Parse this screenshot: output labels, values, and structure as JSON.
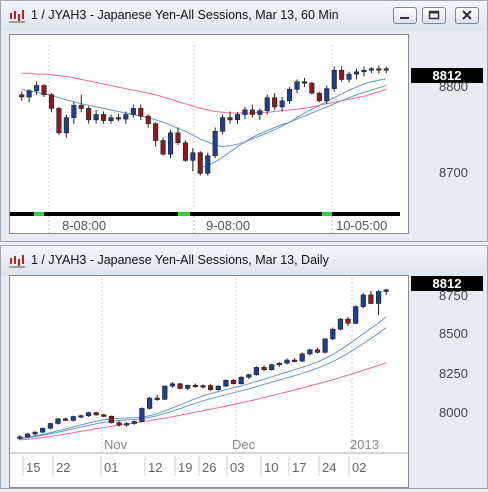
{
  "windows": [
    {
      "title": "1 / JYAH3 - Japanese Yen-All Sessions, Mar 13, 60 Min",
      "last_price": "8812",
      "y_labels": [
        "8800",
        "8700"
      ],
      "session_labels": [
        "8-08:00",
        "9-08:00",
        "10-05:00"
      ]
    },
    {
      "title": "1 / JYAH3 - Japanese Yen-All Sessions, Mar 13, Daily",
      "last_price": "8812",
      "y_labels": [
        "8750",
        "8500",
        "8250",
        "8000"
      ],
      "month_labels": [
        "Nov",
        "Dec",
        "2013"
      ],
      "day_labels": [
        "15",
        "22",
        "01",
        "12",
        "19",
        "26",
        "03",
        "10",
        "17",
        "24",
        "02"
      ]
    }
  ],
  "icons": {
    "app": "chart-app-icon",
    "minimize": "minimize-icon",
    "maximize": "maximize-icon",
    "close": "close-icon"
  },
  "colors": {
    "up_candle": "#1f3f8f",
    "down_candle": "#8b1a1a",
    "ma_fast": "#6699cc",
    "ma_slow": "#ff6699",
    "session_bar": "#000000",
    "session_marker": "#33cc33"
  },
  "chart_data": [
    {
      "type": "candlestick",
      "title": "1 / JYAH3 - Japanese Yen-All Sessions, Mar 13, 60 Min",
      "ylim": [
        8640,
        8830
      ],
      "y_ticks": [
        8700,
        8800
      ],
      "last": 8812,
      "candles": [
        [
          8778,
          8782,
          8770,
          8775
        ],
        [
          8775,
          8785,
          8768,
          8783
        ],
        [
          8783,
          8795,
          8778,
          8790
        ],
        [
          8790,
          8792,
          8775,
          8778
        ],
        [
          8778,
          8780,
          8755,
          8760
        ],
        [
          8760,
          8762,
          8725,
          8728
        ],
        [
          8728,
          8752,
          8722,
          8748
        ],
        [
          8748,
          8768,
          8740,
          8764
        ],
        [
          8764,
          8778,
          8755,
          8760
        ],
        [
          8760,
          8763,
          8740,
          8745
        ],
        [
          8745,
          8758,
          8740,
          8752
        ],
        [
          8752,
          8756,
          8740,
          8744
        ],
        [
          8744,
          8752,
          8740,
          8748
        ],
        [
          8748,
          8753,
          8743,
          8746
        ],
        [
          8746,
          8756,
          8740,
          8752
        ],
        [
          8752,
          8765,
          8748,
          8760
        ],
        [
          8760,
          8765,
          8745,
          8750
        ],
        [
          8750,
          8752,
          8735,
          8740
        ],
        [
          8740,
          8742,
          8710,
          8718
        ],
        [
          8718,
          8722,
          8698,
          8700
        ],
        [
          8700,
          8732,
          8695,
          8728
        ],
        [
          8728,
          8735,
          8712,
          8715
        ],
        [
          8715,
          8718,
          8690,
          8692
        ],
        [
          8692,
          8708,
          8678,
          8702
        ],
        [
          8702,
          8704,
          8672,
          8675
        ],
        [
          8675,
          8702,
          8672,
          8698
        ],
        [
          8698,
          8735,
          8695,
          8730
        ],
        [
          8730,
          8752,
          8726,
          8748
        ],
        [
          8748,
          8756,
          8740,
          8745
        ],
        [
          8745,
          8755,
          8740,
          8752
        ],
        [
          8752,
          8762,
          8746,
          8758
        ],
        [
          8758,
          8765,
          8748,
          8752
        ],
        [
          8752,
          8760,
          8745,
          8757
        ],
        [
          8757,
          8778,
          8752,
          8774
        ],
        [
          8774,
          8780,
          8758,
          8762
        ],
        [
          8762,
          8775,
          8756,
          8770
        ],
        [
          8770,
          8788,
          8766,
          8785
        ],
        [
          8785,
          8798,
          8780,
          8795
        ],
        [
          8795,
          8800,
          8788,
          8793
        ],
        [
          8793,
          8795,
          8778,
          8780
        ],
        [
          8780,
          8782,
          8768,
          8770
        ],
        [
          8770,
          8790,
          8766,
          8786
        ],
        [
          8786,
          8815,
          8782,
          8810
        ],
        [
          8810,
          8815,
          8795,
          8798
        ],
        [
          8798,
          8808,
          8794,
          8805
        ],
        [
          8805,
          8812,
          8798,
          8808
        ],
        [
          8808,
          8815,
          8802,
          8810
        ],
        [
          8810,
          8814,
          8806,
          8812
        ],
        [
          8812,
          8816,
          8806,
          8810
        ],
        [
          8810,
          8815,
          8806,
          8812
        ]
      ],
      "ma_fast": [
        8785,
        8783,
        8781,
        8779,
        8777,
        8774,
        8771,
        8769,
        8766,
        8764,
        8762,
        8760,
        8758,
        8756,
        8754,
        8752,
        8750,
        8748,
        8745,
        8742,
        8738,
        8734,
        8730,
        8725,
        8720,
        8716,
        8712,
        8710,
        8711,
        8713,
        8716,
        8720,
        8724,
        8728,
        8732,
        8737,
        8742,
        8748,
        8754,
        8759,
        8764,
        8769,
        8774,
        8779,
        8784,
        8788,
        8792,
        8795,
        8797,
        8799
      ],
      "ma_slow": [
        null,
        null,
        null,
        null,
        null,
        null,
        null,
        null,
        null,
        null,
        null,
        null,
        null,
        null,
        null,
        null,
        null,
        null,
        null,
        null,
        null,
        null,
        null,
        null,
        8682,
        8685,
        8690,
        8696,
        8703,
        8710,
        8716,
        8722,
        8727,
        8731,
        8735,
        8739,
        8742,
        8746,
        8750,
        8754,
        8758,
        8762,
        8766,
        8770,
        8774,
        8778,
        8781,
        8784,
        8787,
        8790
      ],
      "ma_slowest": [
        8806,
        8806,
        8805,
        8805,
        8804,
        8803,
        8802,
        8800,
        8798,
        8796,
        8794,
        8792,
        8790,
        8788,
        8786,
        8784,
        8782,
        8780,
        8778,
        8775,
        8772,
        8769,
        8766,
        8763,
        8760,
        8758,
        8756,
        8755,
        8754,
        8754,
        8754,
        8754,
        8755,
        8755,
        8756,
        8757,
        8758,
        8759,
        8760,
        8762,
        8764,
        8766,
        8768,
        8770,
        8772,
        8774,
        8776,
        8779,
        8782,
        8785
      ],
      "sessions": [
        "8-08:00",
        "9-08:00",
        "10-05:00"
      ]
    },
    {
      "type": "candlestick",
      "title": "1 / JYAH3 - Japanese Yen-All Sessions, Mar 13, Daily",
      "ylim": [
        7830,
        8850
      ],
      "y_ticks": [
        8000,
        8250,
        8500,
        8750
      ],
      "last": 8812,
      "x_months": [
        "Nov",
        "Dec",
        "2013"
      ],
      "x_days": [
        "15",
        "22",
        "01",
        "12",
        "19",
        "26",
        "03",
        "10",
        "17",
        "24",
        "02"
      ],
      "candles": [
        [
          7860,
          7880,
          7850,
          7870
        ],
        [
          7870,
          7895,
          7862,
          7888
        ],
        [
          7888,
          7905,
          7878,
          7900
        ],
        [
          7900,
          7930,
          7892,
          7925
        ],
        [
          7925,
          7960,
          7918,
          7955
        ],
        [
          7955,
          7990,
          7948,
          7985
        ],
        [
          7985,
          7992,
          7970,
          7975
        ],
        [
          7975,
          8005,
          7968,
          8000
        ],
        [
          8000,
          8012,
          7990,
          8005
        ],
        [
          8005,
          8030,
          7998,
          8025
        ],
        [
          8025,
          8030,
          8005,
          8010
        ],
        [
          8010,
          8018,
          7995,
          8002
        ],
        [
          8002,
          8005,
          7955,
          7960
        ],
        [
          7960,
          7972,
          7935,
          7945
        ],
        [
          7945,
          7965,
          7935,
          7955
        ],
        [
          7955,
          7975,
          7948,
          7968
        ],
        [
          7968,
          8058,
          7962,
          8052
        ],
        [
          8052,
          8125,
          8045,
          8118
        ],
        [
          8118,
          8138,
          8100,
          8110
        ],
        [
          8110,
          8198,
          8105,
          8195
        ],
        [
          8195,
          8220,
          8185,
          8210
        ],
        [
          8210,
          8215,
          8175,
          8180
        ],
        [
          8180,
          8205,
          8170,
          8200
        ],
        [
          8200,
          8212,
          8185,
          8192
        ],
        [
          8192,
          8205,
          8180,
          8198
        ],
        [
          8198,
          8210,
          8165,
          8172
        ],
        [
          8172,
          8200,
          8165,
          8195
        ],
        [
          8195,
          8238,
          8190,
          8232
        ],
        [
          8232,
          8240,
          8205,
          8210
        ],
        [
          8210,
          8258,
          8205,
          8252
        ],
        [
          8252,
          8275,
          8240,
          8268
        ],
        [
          8268,
          8322,
          8262,
          8315
        ],
        [
          8315,
          8328,
          8290,
          8300
        ],
        [
          8300,
          8338,
          8295,
          8332
        ],
        [
          8332,
          8350,
          8318,
          8342
        ],
        [
          8342,
          8372,
          8335,
          8362
        ],
        [
          8362,
          8375,
          8348,
          8355
        ],
        [
          8355,
          8410,
          8350,
          8402
        ],
        [
          8402,
          8435,
          8392,
          8428
        ],
        [
          8428,
          8442,
          8405,
          8412
        ],
        [
          8412,
          8502,
          8405,
          8498
        ],
        [
          8498,
          8570,
          8490,
          8560
        ],
        [
          8560,
          8632,
          8552,
          8625
        ],
        [
          8625,
          8640,
          8580,
          8598
        ],
        [
          8598,
          8712,
          8592,
          8705
        ],
        [
          8705,
          8790,
          8695,
          8780
        ],
        [
          8780,
          8805,
          8720,
          8725
        ],
        [
          8725,
          8812,
          8650,
          8802
        ],
        [
          8802,
          8820,
          8780,
          8812
        ]
      ],
      "ma_fast": [
        7862,
        7868,
        7876,
        7885,
        7896,
        7908,
        7920,
        7933,
        7946,
        7958,
        7969,
        7978,
        7984,
        7988,
        7990,
        7992,
        7996,
        8005,
        8018,
        8035,
        8055,
        8075,
        8095,
        8115,
        8132,
        8147,
        8160,
        8172,
        8184,
        8196,
        8210,
        8225,
        8240,
        8255,
        8270,
        8285,
        8300,
        8315,
        8332,
        8350,
        8372,
        8398,
        8428,
        8460,
        8495,
        8530,
        8565,
        8600,
        8640
      ],
      "ma_slow": [
        7850,
        7854,
        7859,
        7865,
        7872,
        7880,
        7888,
        7896,
        7905,
        7913,
        7921,
        7929,
        7937,
        7944,
        7951,
        7958,
        7966,
        7974,
        7982,
        7990,
        7999,
        8008,
        8017,
        8027,
        8037,
        8047,
        8057,
        8067,
        8077,
        8088,
        8099,
        8110,
        8122,
        8134,
        8146,
        8158,
        8170,
        8183,
        8196,
        8209,
        8222,
        8236,
        8250,
        8265,
        8280,
        8296,
        8312,
        8328,
        8345
      ],
      "ma_mid": [
        7858,
        7864,
        7871,
        7879,
        7889,
        7899,
        7910,
        7921,
        7932,
        7943,
        7953,
        7962,
        7969,
        7974,
        7978,
        7981,
        7986,
        7994,
        8005,
        8018,
        8034,
        8051,
        8068,
        8085,
        8100,
        8114,
        8127,
        8140,
        8152,
        8165,
        8178,
        8192,
        8206,
        8220,
        8234,
        8248,
        8262,
        8277,
        8293,
        8310,
        8330,
        8352,
        8378,
        8406,
        8436,
        8468,
        8500,
        8534,
        8570
      ]
    }
  ]
}
